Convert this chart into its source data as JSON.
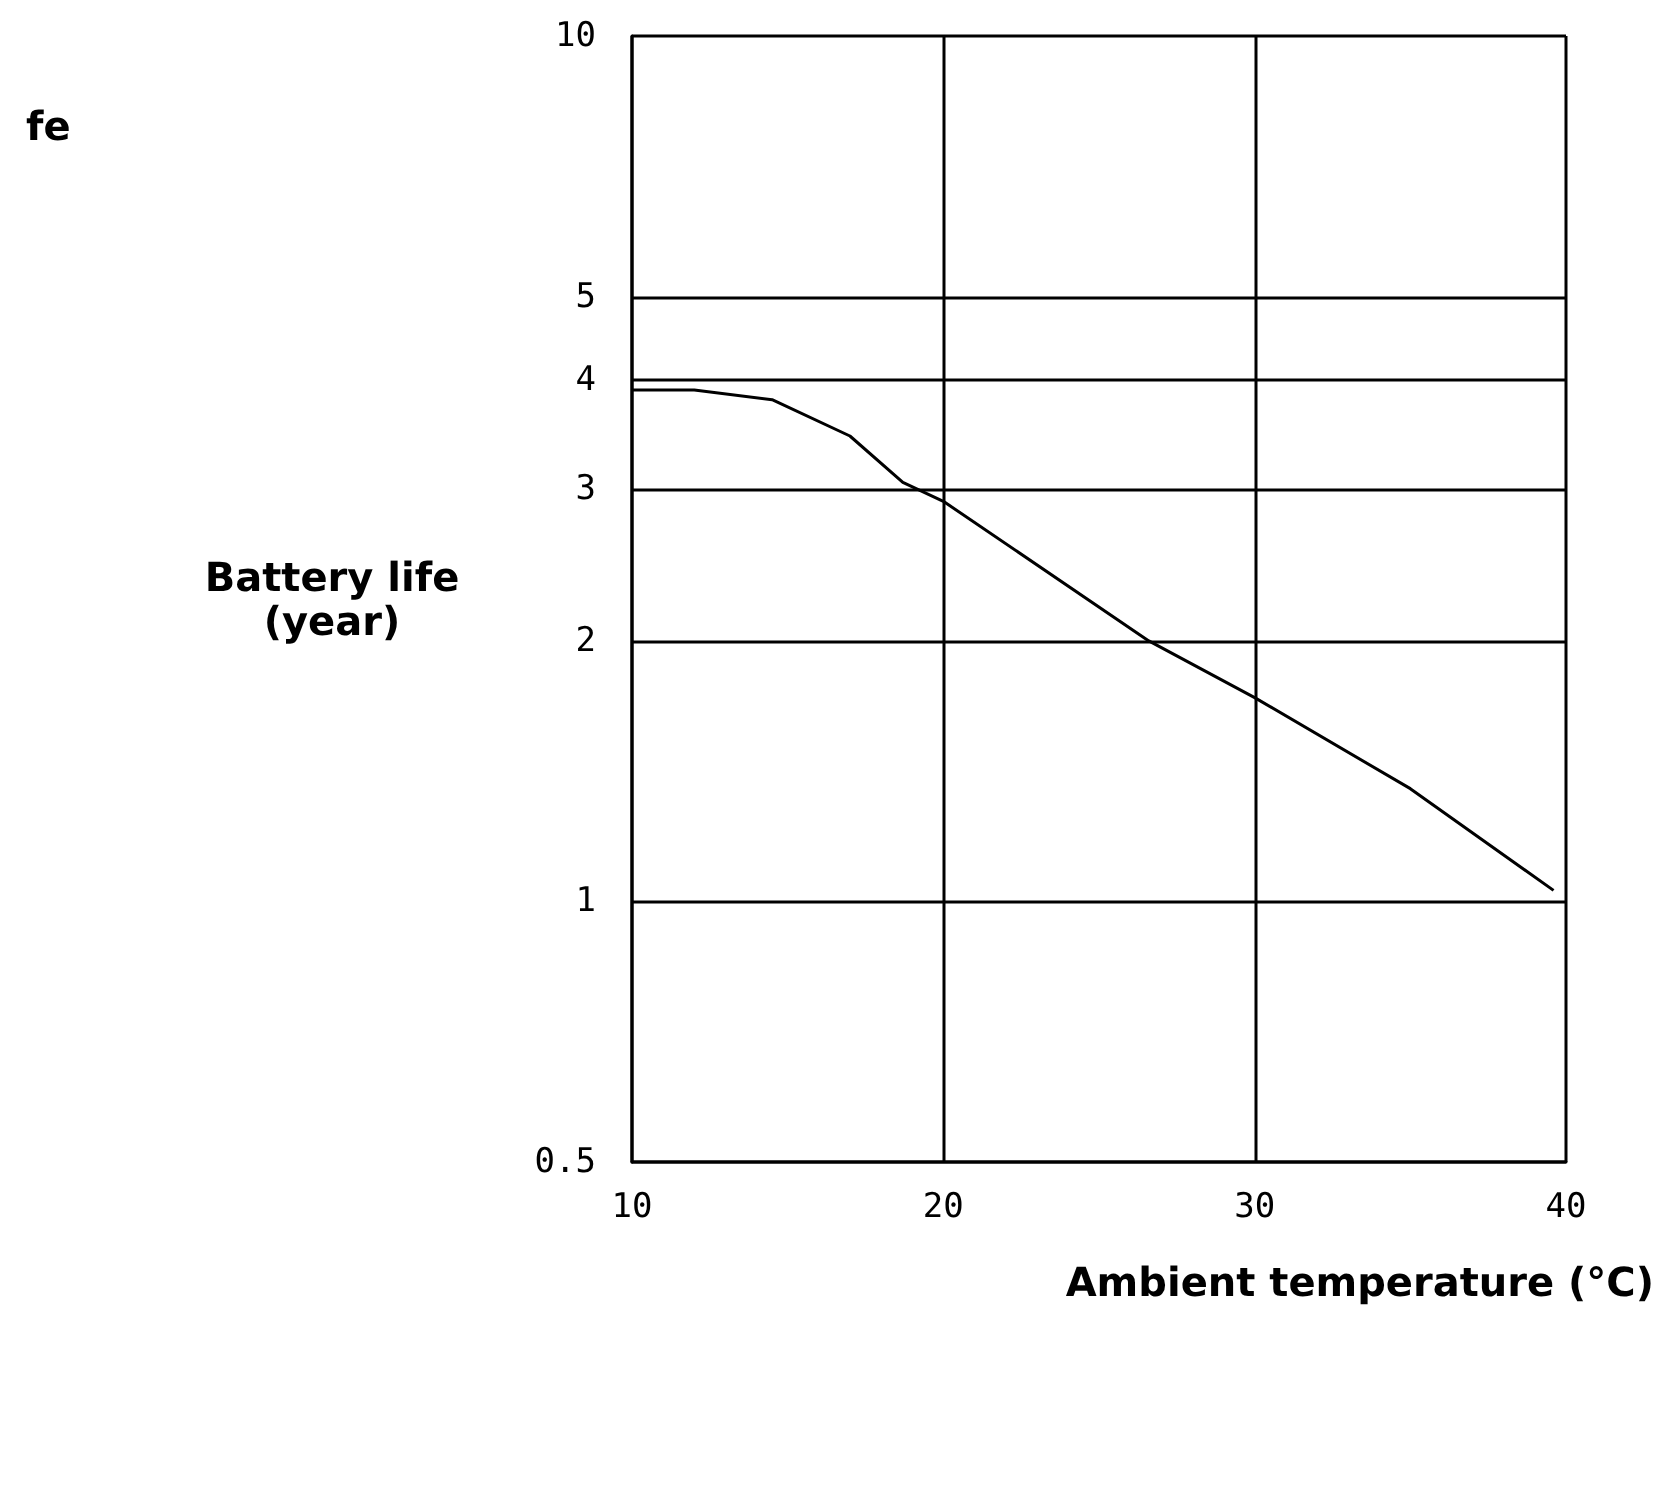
{
  "chart_data": {
    "type": "line",
    "title": "fe",
    "xlabel": "Ambient temperature (°C)",
    "ylabel": "Battery life\n(year)",
    "x": [
      10,
      12,
      14.5,
      17,
      18.7,
      20,
      26.6,
      30,
      35,
      39.6
    ],
    "series": [
      {
        "color": "#000000",
        "values": [
          3.9,
          3.9,
          3.8,
          3.45,
          3.05,
          2.9,
          2.0,
          1.72,
          1.35,
          1.03
        ]
      }
    ],
    "xlim": [
      10,
      40
    ],
    "xticks": [
      10,
      20,
      30,
      40
    ],
    "ylim": [
      0.5,
      10
    ],
    "yticks": [
      0.5,
      1,
      2,
      3,
      4,
      5,
      10
    ],
    "log": "y",
    "grid": true,
    "marker": "none",
    "line_style": "solid"
  }
}
